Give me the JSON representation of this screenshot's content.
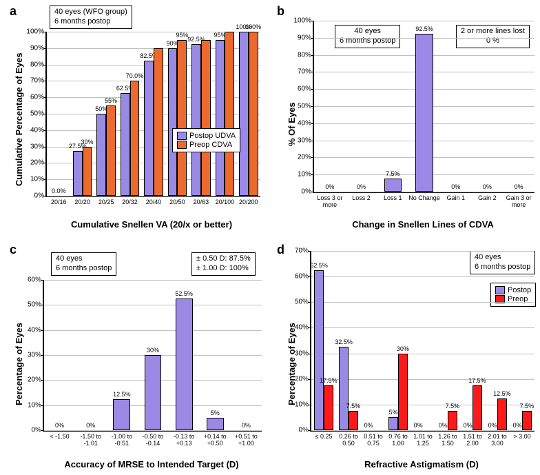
{
  "colors": {
    "purple": "#9a8ae6",
    "orange": "#ed6a2e",
    "red": "#ff1a1a"
  },
  "panel_a": {
    "label": "a",
    "info": "40 eyes (WFO group)\n6 months postop",
    "ylabel": "Cumulative Percentage of Eyes",
    "xlabel": "Cumulative Snellen VA (20/x or better)",
    "ymax": 100,
    "ytick_step": 10,
    "legend": [
      {
        "label": "Postop UDVA",
        "swatch": "purple"
      },
      {
        "label": "Preop CDVA",
        "swatch": "orange"
      }
    ],
    "categories": [
      "20/16",
      "20/20",
      "20/25",
      "20/32",
      "20/40",
      "20/50",
      "20/63",
      "20/100",
      "20/200"
    ],
    "series": {
      "purple": [
        0,
        27.5,
        50,
        62.5,
        82.5,
        90,
        92.5,
        95,
        100
      ],
      "orange": [
        0,
        30,
        55,
        70,
        90,
        95,
        95,
        100,
        100
      ]
    },
    "labels": {
      "purple": [
        "0.0%",
        "27.5%",
        "50%",
        "62.5%",
        "82.5%",
        "90%",
        "92.5%",
        "95%",
        "100%"
      ],
      "orange": [
        "",
        "30%",
        "55%",
        "70.0%",
        "",
        "95%",
        "",
        "",
        "100%"
      ]
    },
    "zero_label_single": true
  },
  "panel_b": {
    "label": "b",
    "info_left": "40 eyes\n6 months postop",
    "info_right": "2 or more lines lost\n0 %",
    "ylabel": "% Of Eyes",
    "xlabel": "Change in Snellen Lines of CDVA",
    "ymax": 100,
    "ytick_step": 10,
    "categories": [
      "Loss 3 or\nmore",
      "Loss 2",
      "Loss 1",
      "No Change",
      "Gain 1",
      "Gain 2",
      "Gain 3 or\nmore"
    ],
    "values": [
      0,
      0,
      7.5,
      92.5,
      0,
      0,
      0
    ],
    "labels": [
      "0%",
      "0%",
      "7.5%",
      "92.5%",
      "0%",
      "0%",
      "0%"
    ]
  },
  "panel_c": {
    "label": "c",
    "info_left": "40 eyes\n6 months postop",
    "info_right": "± 0.50 D: 87.5%\n± 1.00 D: 100%",
    "ylabel": "Percentage of Eyes",
    "xlabel": "Accuracy of MRSE to Intended Target (D)",
    "ymax": 60,
    "ytick_step": 10,
    "categories": [
      "< -1.50",
      "-1.50 to\n-1.01",
      "-1.00 to\n-0.51",
      "-0.50 to\n-0.14",
      "-0.13 to\n+0.13",
      "+0.14 to\n+0.50",
      "+0.51 to\n+1.00"
    ],
    "values": [
      0,
      0,
      12.5,
      30,
      52.5,
      5,
      0
    ],
    "labels": [
      "0%",
      "0%",
      "12.5%",
      "30%",
      "52.5%",
      "5%",
      "0%"
    ]
  },
  "panel_d": {
    "label": "d",
    "info": "40 eyes\n6 months postop",
    "ylabel": "Percentage of Eyes",
    "xlabel": "Refractive Astigmatism (D)",
    "ymax": 70,
    "ytick_step": 10,
    "legend": [
      {
        "label": "Postop",
        "swatch": "purple"
      },
      {
        "label": "Preop",
        "swatch": "red"
      }
    ],
    "categories": [
      "≤ 0.25",
      "0.26 to\n0.50",
      "0.51 to\n0.75",
      "0.76 to\n1.00",
      "1.01 to\n1.25",
      "1.26 to\n1.50",
      "1.51 to\n2.00",
      "2.01 to\n3.00",
      "> 3.00"
    ],
    "series": {
      "purple": [
        62.5,
        32.5,
        0,
        5,
        0,
        0,
        0,
        0,
        0
      ],
      "red": [
        17.5,
        7.5,
        0,
        30,
        0,
        7.5,
        17.5,
        12.5,
        7.5
      ]
    },
    "labels": {
      "purple": [
        "62.5%",
        "32.5%",
        "0%",
        "5%",
        "0%",
        "0%",
        "0%",
        "0%",
        "0%"
      ],
      "red": [
        "17.5%",
        "7.5%",
        "",
        "30%",
        "",
        "7.5%",
        "17.5%",
        "12.5%",
        "7.5%"
      ]
    }
  }
}
